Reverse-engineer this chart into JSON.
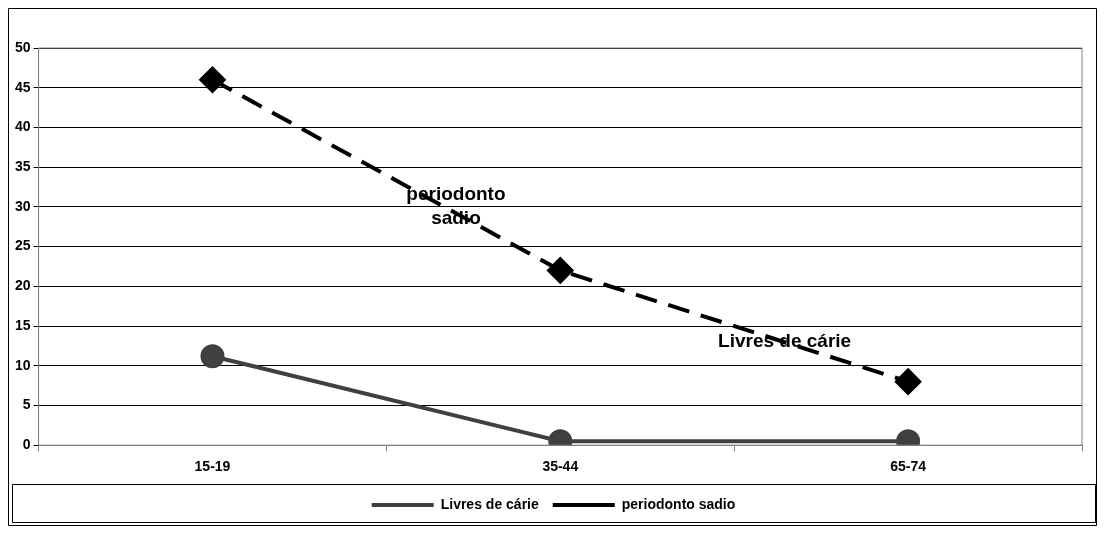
{
  "chart_data": {
    "type": "line",
    "categories": [
      "15-19",
      "35-44",
      "65-74"
    ],
    "series": [
      {
        "name": "Livres de cárie",
        "color": "#404040",
        "values": [
          11.2,
          0.5,
          0.5
        ],
        "marker": "circle",
        "line_style": "solid"
      },
      {
        "name": "periodonto sadio",
        "color": "#000000",
        "values": [
          46,
          22,
          8
        ],
        "marker": "diamond",
        "line_style": "dashed"
      }
    ],
    "ylim": [
      0,
      50
    ],
    "yticks": [
      0,
      5,
      10,
      15,
      20,
      25,
      30,
      35,
      40,
      45,
      50
    ],
    "grid": "y",
    "legend": "bottom",
    "annotations": [
      "periodonto sadio",
      "Livres de cárie"
    ]
  }
}
